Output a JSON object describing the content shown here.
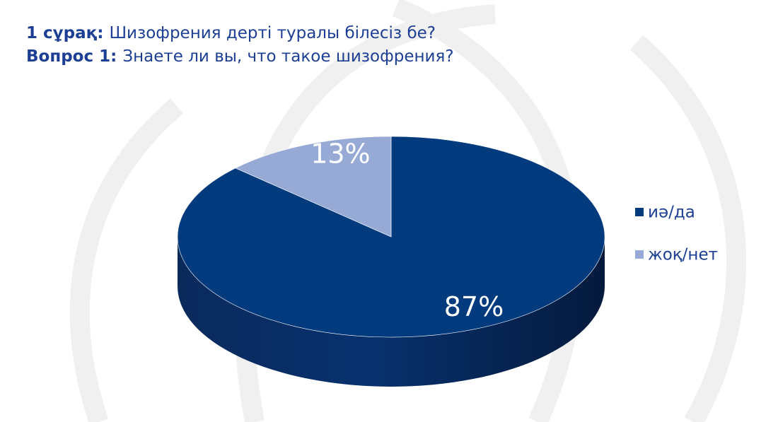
{
  "chart_data": {
    "type": "pie",
    "title": [
      {
        "label": "1 сұрақ:",
        "text": "Шизофрения дерті туралы білесіз бе?"
      },
      {
        "label": "Вопрос 1:",
        "text": "Знаете ли вы, что такое шизофрения?"
      }
    ],
    "categories": [
      "иә/да",
      "жоқ/нет"
    ],
    "values": [
      87,
      13
    ],
    "value_labels": [
      "87%",
      "13%"
    ],
    "colors": [
      "#023a7e",
      "#97aad6"
    ],
    "legend": "right"
  }
}
